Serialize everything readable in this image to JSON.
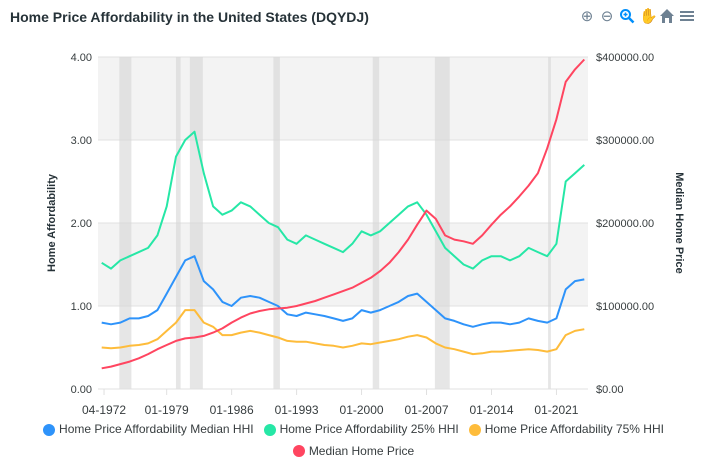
{
  "chart_data": {
    "type": "line",
    "title": "Home Price Affordability in the United States (DQYDJ)",
    "ylabel": "Home Affordability",
    "ylabel_right": "Median Home Price",
    "ylim": [
      0,
      4
    ],
    "ylim_right": [
      0,
      400000
    ],
    "yticks": [
      "0.00",
      "1.00",
      "2.00",
      "3.00",
      "4.00"
    ],
    "yticks_right": [
      "$0.00",
      "$100000.00",
      "$200000.00",
      "$300000.00",
      "$400000.00"
    ],
    "xticks": [
      {
        "label": "04-1972",
        "year": 1972.25
      },
      {
        "label": "01-1979",
        "year": 1979
      },
      {
        "label": "01-1986",
        "year": 1986
      },
      {
        "label": "01-1993",
        "year": 1993
      },
      {
        "label": "01-2000",
        "year": 2000
      },
      {
        "label": "01-2007",
        "year": 2007
      },
      {
        "label": "01-2014",
        "year": 2014
      },
      {
        "label": "01-2021",
        "year": 2021
      }
    ],
    "xlim": [
      1971.6,
      2024.4
    ],
    "recessions": [
      [
        1973.9,
        1975.2
      ],
      [
        1980.0,
        1980.5
      ],
      [
        1981.5,
        1982.9
      ],
      [
        1990.5,
        1991.2
      ],
      [
        2001.2,
        2001.9
      ],
      [
        2007.9,
        2009.5
      ],
      [
        2020.1,
        2020.4
      ]
    ],
    "x": [
      1972,
      1973,
      1974,
      1975,
      1976,
      1977,
      1978,
      1979,
      1980,
      1981,
      1982,
      1983,
      1984,
      1985,
      1986,
      1987,
      1988,
      1989,
      1990,
      1991,
      1992,
      1993,
      1994,
      1995,
      1996,
      1997,
      1998,
      1999,
      2000,
      2001,
      2002,
      2003,
      2004,
      2005,
      2006,
      2007,
      2008,
      2009,
      2010,
      2011,
      2012,
      2013,
      2014,
      2015,
      2016,
      2017,
      2018,
      2019,
      2020,
      2021,
      2022,
      2023,
      2024
    ],
    "series": [
      {
        "name": "Home Price Affordability Median HHI",
        "axis": "left",
        "color": "#2e93fa",
        "values": [
          0.8,
          0.78,
          0.8,
          0.85,
          0.85,
          0.88,
          0.95,
          1.15,
          1.35,
          1.55,
          1.6,
          1.3,
          1.2,
          1.05,
          1.0,
          1.1,
          1.12,
          1.1,
          1.05,
          1.0,
          0.9,
          0.88,
          0.92,
          0.9,
          0.88,
          0.85,
          0.82,
          0.85,
          0.95,
          0.92,
          0.95,
          1.0,
          1.05,
          1.12,
          1.15,
          1.05,
          0.95,
          0.85,
          0.82,
          0.78,
          0.75,
          0.78,
          0.8,
          0.8,
          0.78,
          0.8,
          0.85,
          0.82,
          0.8,
          0.85,
          1.2,
          1.3,
          1.32
        ]
      },
      {
        "name": "Home Price Affordability 25% HHI",
        "axis": "left",
        "color": "#26e7a6",
        "values": [
          1.52,
          1.45,
          1.55,
          1.6,
          1.65,
          1.7,
          1.85,
          2.2,
          2.8,
          3.0,
          3.1,
          2.6,
          2.2,
          2.1,
          2.15,
          2.25,
          2.2,
          2.1,
          2.0,
          1.95,
          1.8,
          1.75,
          1.85,
          1.8,
          1.75,
          1.7,
          1.65,
          1.75,
          1.9,
          1.85,
          1.9,
          2.0,
          2.1,
          2.2,
          2.25,
          2.1,
          1.9,
          1.7,
          1.6,
          1.5,
          1.45,
          1.55,
          1.6,
          1.6,
          1.55,
          1.6,
          1.7,
          1.65,
          1.6,
          1.75,
          2.5,
          2.6,
          2.7
        ]
      },
      {
        "name": "Home Price Affordability 75% HHI",
        "axis": "left",
        "color": "#febc3b",
        "values": [
          0.5,
          0.49,
          0.5,
          0.52,
          0.53,
          0.55,
          0.6,
          0.7,
          0.8,
          0.95,
          0.95,
          0.8,
          0.75,
          0.65,
          0.65,
          0.68,
          0.7,
          0.68,
          0.65,
          0.62,
          0.58,
          0.57,
          0.57,
          0.55,
          0.53,
          0.52,
          0.5,
          0.52,
          0.55,
          0.54,
          0.56,
          0.58,
          0.6,
          0.63,
          0.65,
          0.62,
          0.55,
          0.5,
          0.48,
          0.45,
          0.42,
          0.43,
          0.45,
          0.45,
          0.46,
          0.47,
          0.48,
          0.47,
          0.45,
          0.48,
          0.65,
          0.7,
          0.72
        ]
      },
      {
        "name": "Median Home Price",
        "axis": "right",
        "color": "#ff4560",
        "values": [
          25000,
          27000,
          30000,
          33000,
          37000,
          42000,
          48000,
          53000,
          58000,
          61000,
          62000,
          64000,
          68000,
          73000,
          80000,
          86000,
          91000,
          94000,
          96000,
          97000,
          98000,
          100000,
          103000,
          106000,
          110000,
          114000,
          118000,
          122000,
          128000,
          134000,
          142000,
          152000,
          165000,
          180000,
          198000,
          215000,
          205000,
          185000,
          180000,
          178000,
          175000,
          185000,
          198000,
          210000,
          220000,
          232000,
          245000,
          260000,
          290000,
          325000,
          370000,
          385000,
          397000
        ]
      }
    ]
  },
  "toolbar": {
    "zoom_in": "zoom-in",
    "zoom_out": "zoom-out",
    "selection_zoom": "zoom",
    "pan": "pan",
    "reset": "home",
    "menu": "menu"
  }
}
